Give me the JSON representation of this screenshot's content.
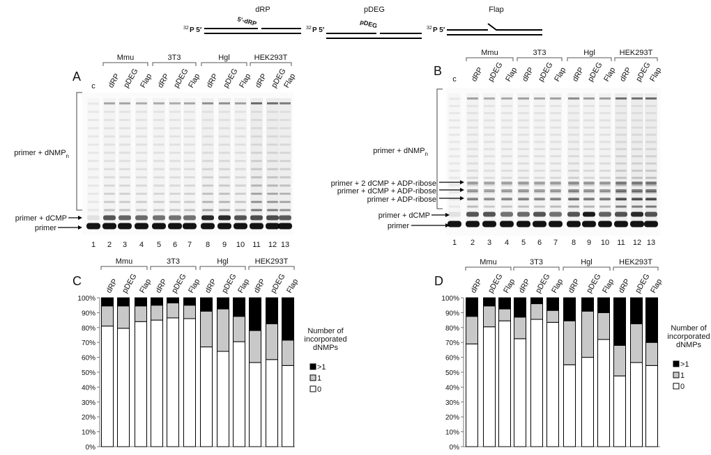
{
  "substrates": {
    "drp": {
      "title": "dRP",
      "label": "5'-dRP"
    },
    "pdeg": {
      "title": "pDEG",
      "label": "pDEG"
    },
    "flap": {
      "title": "Flap"
    },
    "p32": "32",
    "p5": "P 5′"
  },
  "cell_lines": [
    "Mmu",
    "3T3",
    "Hgl",
    "HEK293T"
  ],
  "lane_subs": [
    "dRP",
    "pDEG",
    "Flap"
  ],
  "control_label": "c",
  "lane_numbers": [
    "1",
    "2",
    "3",
    "4",
    "5",
    "6",
    "7",
    "8",
    "9",
    "10",
    "11",
    "12",
    "13"
  ],
  "panel_letters": {
    "a": "A",
    "b": "B",
    "c": "C",
    "d": "D"
  },
  "gel_a_labels": {
    "dnmp_prefix": "primer + dNMP",
    "dnmp_sub": "n",
    "dcmp": "primer + dCMP",
    "primer": "primer"
  },
  "gel_b_labels": {
    "dnmp_prefix": "primer + dNMP",
    "dnmp_sub": "n",
    "adp2": "primer + 2 dCMP + ADP-ribose",
    "adp1": "primer + dCMP + ADP-ribose",
    "adp0": "primer + ADP-ribose",
    "dcmp": "primer + dCMP",
    "primer": "primer"
  },
  "legend": {
    "title": [
      "Number of",
      "incorporated",
      "dNMPs"
    ],
    "items": [
      ">1",
      "1",
      "0"
    ],
    "colors": [
      "#000000",
      "#c8c8c8",
      "#ffffff"
    ]
  },
  "chart_data": [
    {
      "type": "bar",
      "stacked": true,
      "title": "C",
      "categories": [
        "Mmu dRP",
        "Mmu pDEG",
        "Mmu Flap",
        "3T3 dRP",
        "3T3 pDEG",
        "3T3 Flap",
        "Hgl dRP",
        "Hgl pDEG",
        "Hgl Flap",
        "HEK293T dRP",
        "HEK293T pDEG",
        "HEK293T Flap"
      ],
      "series": [
        {
          "name": "0",
          "values": [
            81,
            79.5,
            84,
            85,
            86.5,
            86,
            67,
            64,
            70.5,
            56.5,
            58.5,
            54.5
          ]
        },
        {
          "name": "1",
          "values": [
            13.5,
            15,
            10.5,
            10,
            10,
            9,
            24,
            28.5,
            17,
            21.5,
            24,
            17
          ]
        },
        {
          "name": ">1",
          "values": [
            5.5,
            5.5,
            5.5,
            5,
            3.5,
            5,
            9,
            7.5,
            12.5,
            22,
            17.5,
            28.5
          ]
        }
      ],
      "yticks": [
        "0%",
        "10%",
        "20%",
        "30%",
        "40%",
        "50%",
        "60%",
        "70%",
        "80%",
        "90%",
        "100%"
      ],
      "ylim": [
        0,
        100
      ]
    },
    {
      "type": "bar",
      "stacked": true,
      "title": "D",
      "categories": [
        "Mmu dRP",
        "Mmu pDEG",
        "Mmu Flap",
        "3T3 dRP",
        "3T3 pDEG",
        "3T3 Flap",
        "Hgl dRP",
        "Hgl pDEG",
        "Hgl Flap",
        "HEK293T dRP",
        "HEK293T pDEG",
        "HEK293T Flap"
      ],
      "series": [
        {
          "name": "0",
          "values": [
            69,
            80.5,
            84.5,
            72.5,
            85.5,
            83.5,
            55,
            60,
            72,
            47.5,
            56.5,
            54.5
          ]
        },
        {
          "name": "1",
          "values": [
            18.5,
            14,
            8,
            14.5,
            10.5,
            8,
            29.5,
            31,
            18,
            20.5,
            26,
            15.5
          ]
        },
        {
          "name": ">1",
          "values": [
            12.5,
            5.5,
            7.5,
            13,
            4,
            8.5,
            15.5,
            9,
            10,
            32,
            17.5,
            30
          ]
        }
      ],
      "yticks": [
        "0%",
        "10%",
        "20%",
        "30%",
        "40%",
        "50%",
        "60%",
        "70%",
        "80%",
        "90%",
        "100%"
      ],
      "ylim": [
        0,
        100
      ]
    }
  ]
}
